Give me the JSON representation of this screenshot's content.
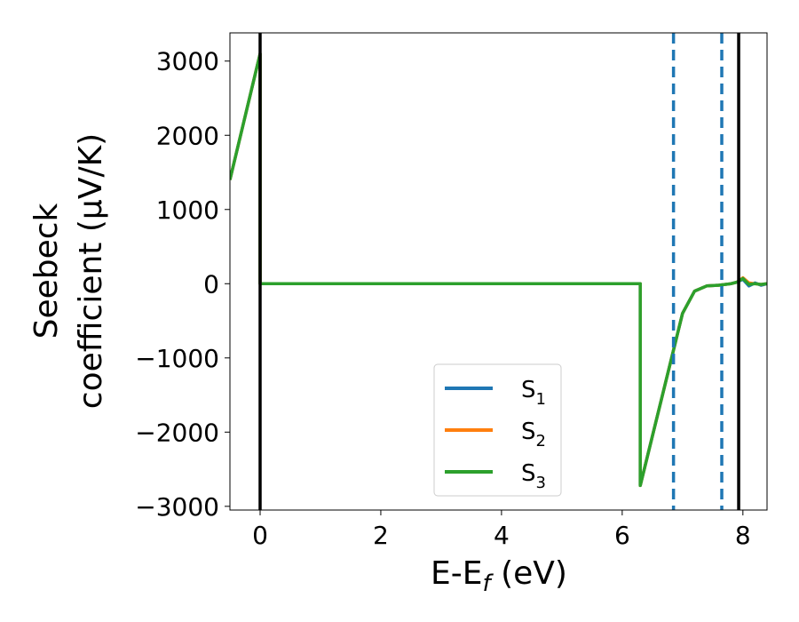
{
  "chart_data": {
    "type": "line",
    "xlabel": {
      "main": "E-E",
      "sub": "f",
      "tail": " (eV)"
    },
    "ylabel": {
      "line1": "Seebeck",
      "line2": "coefficient  (μV/K)"
    },
    "xlim": [
      -0.5,
      8.4
    ],
    "ylim": [
      -3050,
      3380
    ],
    "xticks": [
      0,
      2,
      4,
      6,
      8
    ],
    "yticks": [
      -3000,
      -2000,
      -1000,
      0,
      1000,
      2000,
      3000
    ],
    "ytick_labels": [
      "−3000",
      "−2000",
      "−1000",
      "0",
      "1000",
      "2000",
      "3000"
    ],
    "vlines_solid": [
      0,
      7.93
    ],
    "vlines_dashed": [
      6.85,
      7.65
    ],
    "vline_solid_color": "#000000",
    "vline_dashed_color": "#1f77b4",
    "grid": false,
    "legend_position": "lower center",
    "series": [
      {
        "name": "S",
        "sub": "1",
        "color": "#1f77b4",
        "x": [
          -0.5,
          0.0,
          0.0,
          6.3,
          6.3,
          7.0,
          7.2,
          7.4,
          7.6,
          7.8,
          7.9,
          8.0,
          8.1,
          8.2,
          8.3,
          8.4
        ],
        "y": [
          1400,
          3100,
          0,
          0,
          -2720,
          -400,
          -100,
          -30,
          -20,
          0,
          20,
          60,
          -30,
          10,
          -20,
          0
        ]
      },
      {
        "name": "S",
        "sub": "2",
        "color": "#ff7f0e",
        "x": [
          -0.5,
          0.0,
          0.0,
          6.3,
          6.3,
          7.0,
          7.2,
          7.4,
          7.6,
          7.8,
          7.9,
          8.0,
          8.1,
          8.2,
          8.3,
          8.4
        ],
        "y": [
          1400,
          3100,
          0,
          0,
          -2720,
          -400,
          -100,
          -30,
          -20,
          0,
          20,
          80,
          10,
          0,
          -10,
          0
        ]
      },
      {
        "name": "S",
        "sub": "3",
        "color": "#2ca02c",
        "x": [
          -0.5,
          0.0,
          0.0,
          6.3,
          6.3,
          7.0,
          7.2,
          7.4,
          7.6,
          7.8,
          7.9,
          8.0,
          8.1,
          8.2,
          8.3,
          8.4
        ],
        "y": [
          1400,
          3100,
          0,
          0,
          -2720,
          -400,
          -100,
          -30,
          -20,
          0,
          20,
          70,
          -10,
          0,
          -10,
          0
        ]
      }
    ]
  }
}
